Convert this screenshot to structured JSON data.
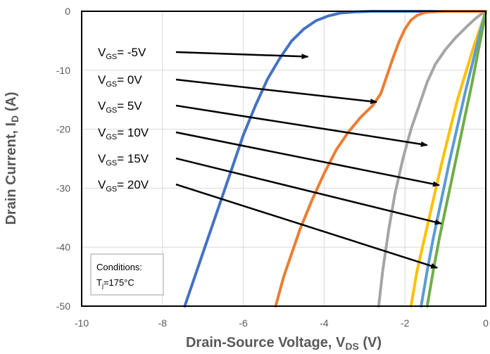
{
  "chart_data": {
    "type": "line",
    "xlabel": {
      "main": "Drain-Source Voltage, V",
      "sub": "DS",
      "unit": " (V)"
    },
    "ylabel": {
      "main": "Drain Current, I",
      "sub": "D",
      "unit": " (A)"
    },
    "xlim": [
      -10,
      0
    ],
    "ylim": [
      -50,
      0
    ],
    "xticks": [
      -10,
      -8,
      -6,
      -4,
      -2,
      0
    ],
    "yticks": [
      0,
      -10,
      -20,
      -30,
      -40,
      -50
    ],
    "grid": true,
    "legend": "none",
    "series": [
      {
        "label": "V_GS=-5V",
        "color": "#4472C4",
        "points": [
          [
            -7.45,
            -50
          ],
          [
            -7.2,
            -45
          ],
          [
            -6.9,
            -39
          ],
          [
            -6.6,
            -33
          ],
          [
            -6.3,
            -27
          ],
          [
            -6.0,
            -21
          ],
          [
            -5.7,
            -16
          ],
          [
            -5.4,
            -11.5
          ],
          [
            -5.1,
            -8
          ],
          [
            -4.8,
            -5
          ],
          [
            -4.5,
            -3
          ],
          [
            -4.2,
            -1.6
          ],
          [
            -3.9,
            -0.8
          ],
          [
            -3.6,
            -0.3
          ],
          [
            -3.2,
            -0.1
          ],
          [
            -2.8,
            0
          ],
          [
            -0.05,
            0
          ]
        ]
      },
      {
        "label": "V_GS=0V",
        "color": "#ED7D31",
        "points": [
          [
            -5.2,
            -50
          ],
          [
            -5.0,
            -45
          ],
          [
            -4.8,
            -41
          ],
          [
            -4.6,
            -37
          ],
          [
            -4.3,
            -32
          ],
          [
            -4.0,
            -27.5
          ],
          [
            -3.7,
            -23.5
          ],
          [
            -3.4,
            -20.5
          ],
          [
            -3.1,
            -18
          ],
          [
            -2.8,
            -16
          ],
          [
            -2.6,
            -14
          ],
          [
            -2.45,
            -11
          ],
          [
            -2.3,
            -8
          ],
          [
            -2.15,
            -5.2
          ],
          [
            -2.0,
            -3
          ],
          [
            -1.85,
            -1.5
          ],
          [
            -1.7,
            -0.7
          ],
          [
            -1.5,
            -0.2
          ],
          [
            -1.2,
            -0.05
          ],
          [
            -0.9,
            0
          ],
          [
            -0.05,
            0
          ]
        ]
      },
      {
        "label": "V_GS=5V",
        "color": "#A5A5A5",
        "points": [
          [
            -2.65,
            -50
          ],
          [
            -2.55,
            -44
          ],
          [
            -2.4,
            -37
          ],
          [
            -2.25,
            -31
          ],
          [
            -2.05,
            -25
          ],
          [
            -1.85,
            -20
          ],
          [
            -1.65,
            -16
          ],
          [
            -1.45,
            -12
          ],
          [
            -1.25,
            -9
          ],
          [
            -1.0,
            -6.5
          ],
          [
            -0.75,
            -4.5
          ],
          [
            -0.5,
            -2.8
          ],
          [
            -0.3,
            -1.5
          ],
          [
            -0.12,
            -0.5
          ],
          [
            0,
            0
          ]
        ]
      },
      {
        "label": "V_GS=10V",
        "color": "#FFC000",
        "points": [
          [
            -1.85,
            -50
          ],
          [
            -1.7,
            -44
          ],
          [
            -1.5,
            -38
          ],
          [
            -1.3,
            -32
          ],
          [
            -1.1,
            -26
          ],
          [
            -0.9,
            -20.5
          ],
          [
            -0.7,
            -15
          ],
          [
            -0.5,
            -10.5
          ],
          [
            -0.3,
            -6
          ],
          [
            -0.12,
            -2.5
          ],
          [
            0,
            0
          ]
        ]
      },
      {
        "label": "V_GS=15V",
        "color": "#5B9BD5",
        "points": [
          [
            -1.6,
            -50
          ],
          [
            -1.45,
            -44
          ],
          [
            -1.3,
            -38.5
          ],
          [
            -1.1,
            -32
          ],
          [
            -0.9,
            -25.5
          ],
          [
            -0.7,
            -19.5
          ],
          [
            -0.5,
            -13.5
          ],
          [
            -0.3,
            -8
          ],
          [
            -0.12,
            -3
          ],
          [
            0,
            0
          ]
        ]
      },
      {
        "label": "V_GS=20V",
        "color": "#70AD47",
        "points": [
          [
            -1.45,
            -50
          ],
          [
            -1.3,
            -44
          ],
          [
            -1.15,
            -38.5
          ],
          [
            -0.95,
            -32
          ],
          [
            -0.75,
            -25.5
          ],
          [
            -0.55,
            -19
          ],
          [
            -0.35,
            -12.5
          ],
          [
            -0.18,
            -6.5
          ],
          [
            -0.05,
            -2
          ],
          [
            0,
            0
          ]
        ]
      }
    ],
    "annotations": [
      {
        "main": "V",
        "sub": "GS",
        "rest": "= -5V",
        "arrow_to": [
          -4.4,
          -7.7
        ]
      },
      {
        "main": "V",
        "sub": "GS",
        "rest": "= 0V",
        "arrow_to": [
          -2.7,
          -15.4
        ]
      },
      {
        "main": "V",
        "sub": "GS",
        "rest": "= 5V",
        "arrow_to": [
          -1.45,
          -22.7
        ]
      },
      {
        "main": "V",
        "sub": "GS",
        "rest": "= 10V",
        "arrow_to": [
          -1.15,
          -29.5
        ]
      },
      {
        "main": "V",
        "sub": "GS",
        "rest": "= 15V",
        "arrow_to": [
          -1.1,
          -36
        ]
      },
      {
        "main": "V",
        "sub": "GS",
        "rest": "= 20V",
        "arrow_to": [
          -1.2,
          -43.5
        ]
      }
    ],
    "conditions": {
      "title": "Conditions:",
      "main": "T",
      "sub": "j",
      "rest": "=175°C"
    }
  }
}
